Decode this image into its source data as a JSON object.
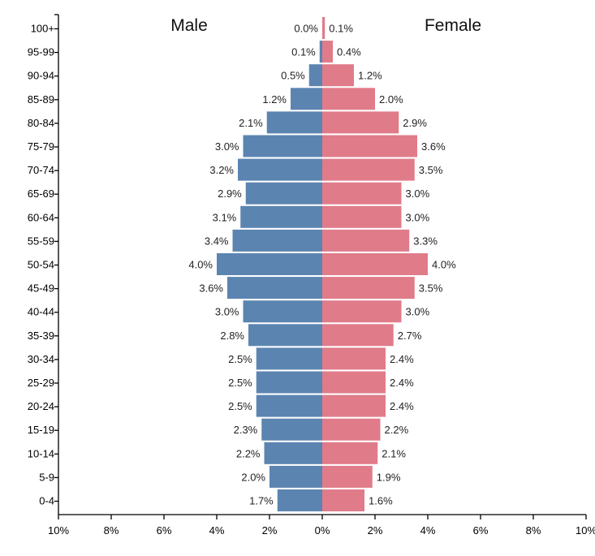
{
  "chart_data": {
    "type": "bar",
    "orientation": "horizontal-population-pyramid",
    "title_left": "Male",
    "title_right": "Female",
    "categories": [
      "100+",
      "95-99",
      "90-94",
      "85-89",
      "80-84",
      "75-79",
      "70-74",
      "65-69",
      "60-64",
      "55-59",
      "50-54",
      "45-49",
      "40-44",
      "35-39",
      "30-34",
      "25-29",
      "20-24",
      "15-19",
      "10-14",
      "5-9",
      "0-4"
    ],
    "series": [
      {
        "name": "Male",
        "color": "#5b84b1",
        "values": [
          0.0,
          0.1,
          0.5,
          1.2,
          2.1,
          3.0,
          3.2,
          2.9,
          3.1,
          3.4,
          4.0,
          3.6,
          3.0,
          2.8,
          2.5,
          2.5,
          2.5,
          2.3,
          2.2,
          2.0,
          1.7
        ],
        "labels": [
          "0.0%",
          "0.1%",
          "0.5%",
          "1.2%",
          "2.1%",
          "3.0%",
          "3.2%",
          "2.9%",
          "3.1%",
          "3.4%",
          "4.0%",
          "3.6%",
          "3.0%",
          "2.8%",
          "2.5%",
          "2.5%",
          "2.5%",
          "2.3%",
          "2.2%",
          "2.0%",
          "1.7%"
        ]
      },
      {
        "name": "Female",
        "color": "#e07b8a",
        "values": [
          0.1,
          0.4,
          1.2,
          2.0,
          2.9,
          3.6,
          3.5,
          3.0,
          3.0,
          3.3,
          4.0,
          3.5,
          3.0,
          2.7,
          2.4,
          2.4,
          2.4,
          2.2,
          2.1,
          1.9,
          1.6
        ],
        "labels": [
          "0.1%",
          "0.4%",
          "1.2%",
          "2.0%",
          "2.9%",
          "3.6%",
          "3.5%",
          "3.0%",
          "3.0%",
          "3.3%",
          "4.0%",
          "3.5%",
          "3.0%",
          "2.7%",
          "2.4%",
          "2.4%",
          "2.4%",
          "2.2%",
          "2.1%",
          "1.9%",
          "1.6%"
        ]
      }
    ],
    "xlim": [
      -10,
      10
    ],
    "x_ticks": [
      "10%",
      "8%",
      "6%",
      "4%",
      "2%",
      "0%",
      "2%",
      "4%",
      "6%",
      "8%",
      "10%"
    ],
    "grid": false
  }
}
